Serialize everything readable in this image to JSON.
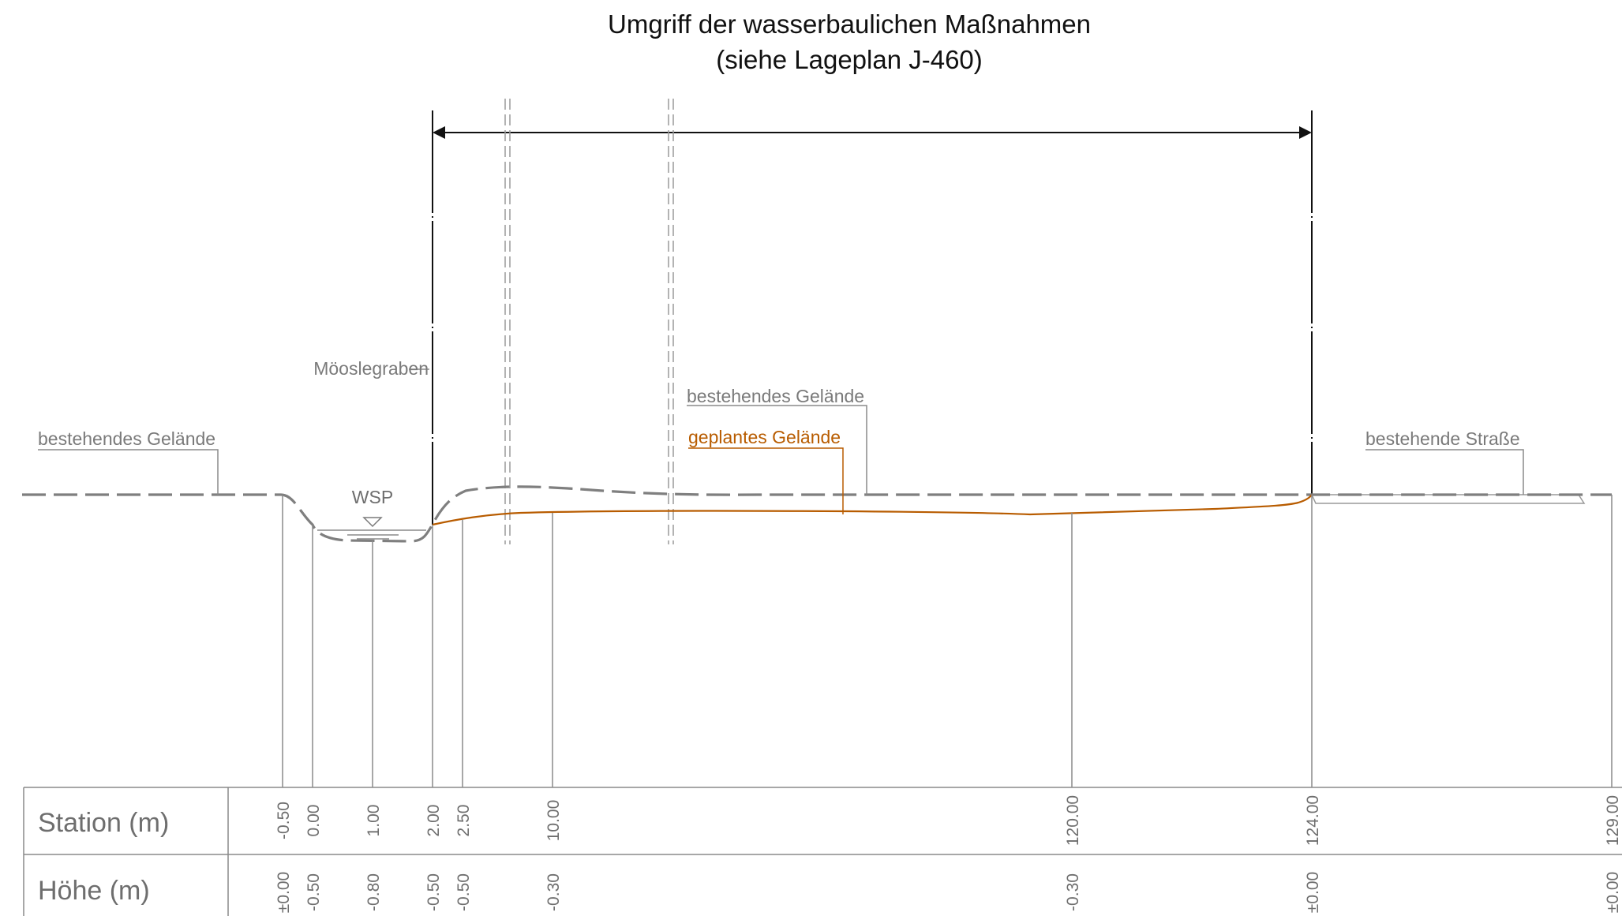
{
  "title": {
    "line1": "Umgriff der wasserbaulichen Maßnahmen",
    "line2": "(siehe Lageplan J-460)"
  },
  "labels": {
    "existing_terrain_left": "bestehendes Gelände",
    "existing_terrain_mid": "bestehendes Gelände",
    "planned_terrain": "geplantes Gelände",
    "existing_road": "bestehende Straße",
    "stream": "Möoslegraben",
    "water_level": "WSP"
  },
  "table": {
    "station_header": "Station (m)",
    "height_header": "Höhe (m)"
  },
  "colors": {
    "existing_terrain": "#7f7f7f",
    "planned_terrain": "#b85c00",
    "dimension_line": "#111111",
    "leader_lines": "#8a8a8a"
  },
  "chart_data": {
    "type": "cross-section",
    "stations": [
      {
        "station": "-0.50",
        "height": "±0.00"
      },
      {
        "station": "0.00",
        "height": "-0.50"
      },
      {
        "station": "1.00",
        "height": "-0.80"
      },
      {
        "station": "2.00",
        "height": "-0.50"
      },
      {
        "station": "2.50",
        "height": "-0.50"
      },
      {
        "station": "10.00",
        "height": "-0.30"
      },
      {
        "station": "120.00",
        "height": "-0.30"
      },
      {
        "station": "124.00",
        "height": "±0.00"
      },
      {
        "station": "129.00",
        "height": "±0.00"
      }
    ],
    "dimension_extent": {
      "from_station": "2.00",
      "to_station": "124.00"
    },
    "series": [
      {
        "name": "bestehendes Gelände",
        "style": "dashed",
        "color": "#7f7f7f"
      },
      {
        "name": "geplantes Gelände",
        "style": "solid",
        "color": "#b85c00"
      }
    ]
  }
}
